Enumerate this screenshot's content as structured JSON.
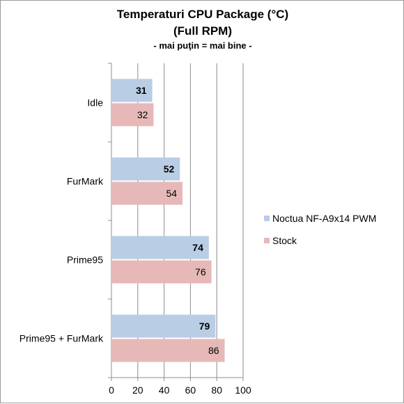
{
  "chart_data": {
    "type": "bar",
    "orientation": "horizontal",
    "title": "Temperaturi CPU Package (°C)",
    "subtitle": "(Full RPM)",
    "note": "- mai puţin = mai bine -",
    "categories": [
      "Idle",
      "FurMark",
      "Prime95",
      "Prime95 + FurMark"
    ],
    "series": [
      {
        "name": "Noctua NF-A9x14 PWM",
        "values": [
          31,
          52,
          74,
          79
        ],
        "color": "#b9cde5",
        "label_bold": true
      },
      {
        "name": "Stock",
        "values": [
          32,
          54,
          76,
          86
        ],
        "color": "#e6b9b8",
        "label_bold": false
      }
    ],
    "xlim": [
      0,
      100
    ],
    "xticks": [
      0,
      20,
      40,
      60,
      80,
      100
    ],
    "grid": true,
    "legend": "right"
  }
}
